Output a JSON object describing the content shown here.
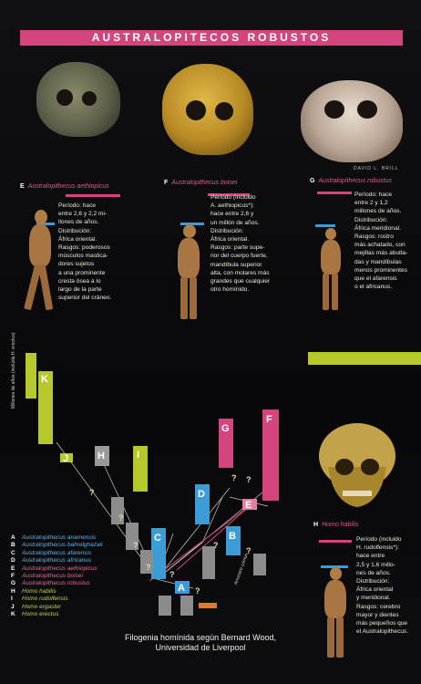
{
  "header": {
    "title": "AUSTRALOPITECOS ROBUSTOS"
  },
  "photo_credit": "DAVID L. BRILL",
  "species": [
    {
      "letter": "E",
      "name": "Australopithecus aethiopicus",
      "lines": [
        "Período: hace",
        "entre 2,6 y 2,2 mi-",
        "llones de años.",
        "Distribución:",
        "África oriental.",
        "Rasgos: poderosos",
        "músculos mastica-",
        "dores sujetos",
        "a una prominente",
        "cresta ósea a lo",
        "largo de la parte",
        "superior del cráneo."
      ]
    },
    {
      "letter": "F",
      "name": "Australopithecus boisei",
      "lines": [
        "Período (incluido",
        "A. aethiopicus*):",
        "hace entre 2,6 y",
        "un millón de años.",
        "Distribución:",
        "África oriental.",
        "Rasgos: parte supe-",
        "rior del cuerpo fuerte,",
        "mandíbula superior",
        "alta, con molares más",
        "grandes que cualquier",
        "otro homínido."
      ]
    },
    {
      "letter": "G",
      "name": "Australopithecus robustus",
      "lines": [
        "Período: hace",
        "entre 2 y 1,2",
        "millones de años.",
        "Distribución:",
        "África meridional.",
        "Rasgos: rostro",
        "más achatado, con",
        "mejillas más abulta-",
        "das y mandíbulas",
        "menos prominentes",
        "que el afarensis",
        "o el africanus."
      ]
    },
    {
      "letter": "H",
      "name": "Homo habilis",
      "lines": [
        "Período (incluido",
        "H. rudolfensis*):",
        "hace entre",
        "2,5 y 1,6 millo-",
        "nes de años.",
        "Distribución:",
        "África oriental",
        "y meridional.",
        "Rasgos: cerebro",
        "mayor y dientes",
        "más pequeños que",
        "el Australopithecus."
      ]
    }
  ],
  "axis_label": "Millones de años (incluida H. erectus)",
  "ancestor_label": "Ancestro común",
  "tree_nodes": [
    "A",
    "B",
    "C",
    "D",
    "E",
    "F",
    "G",
    "H",
    "I",
    "J",
    "K"
  ],
  "legend": [
    {
      "letter": "A",
      "name": "Australopithecus anamensis",
      "color": "#3c9cd6"
    },
    {
      "letter": "B",
      "name": "Australopithecus bahrelghazali",
      "color": "#3c9cd6"
    },
    {
      "letter": "C",
      "name": "Australopithecus afarensis",
      "color": "#3c9cd6"
    },
    {
      "letter": "D",
      "name": "Australopithecus africanus",
      "color": "#3c9cd6"
    },
    {
      "letter": "E",
      "name": "Australopithecus aethiopicus",
      "color": "#d4457e"
    },
    {
      "letter": "F",
      "name": "Australopithecus boisei",
      "color": "#d4457e"
    },
    {
      "letter": "G",
      "name": "Australopithecus robustus",
      "color": "#d4457e"
    },
    {
      "letter": "H",
      "name": "Homo habilis",
      "color": "#b6c82c"
    },
    {
      "letter": "I",
      "name": "Homo rudolfensis",
      "color": "#b6c82c"
    },
    {
      "letter": "J",
      "name": "Homo ergaster",
      "color": "#b6c82c"
    },
    {
      "letter": "K",
      "name": "Homo erectus",
      "color": "#b6c82c"
    }
  ],
  "caption": [
    "Filogenia homínida según Bernard Wood,",
    "Universidad de Liverpool"
  ],
  "colors": {
    "pink": "#d4457e",
    "blue": "#3c9cd6",
    "green": "#b6c82c",
    "gray": "#8c8c8c"
  }
}
